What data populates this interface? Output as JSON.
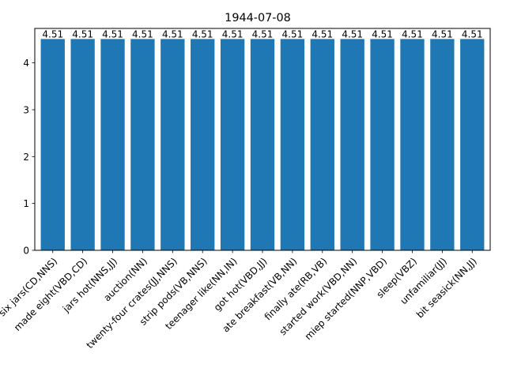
{
  "chart_data": {
    "type": "bar",
    "title": "1944-07-08",
    "xlabel": "",
    "ylabel": "",
    "categories": [
      "six jars(CD,NNS)",
      "made eight(VBD,CD)",
      "jars hot(NNS,JJ)",
      "auction(NN)",
      "twenty-four crates(JJ,NNS)",
      "strip pods(VB,NNS)",
      "teenager like(NN,IN)",
      "got hot(VBD,JJ)",
      "ate breakfast(VB,NN)",
      "finally ate(RB,VB)",
      "started work(VBD,NN)",
      "miep started(NNP,VBD)",
      "sleep(VBZ)",
      "unfamiliar(JJ)",
      "bit seasick(NN,JJ)"
    ],
    "values": [
      4.51,
      4.51,
      4.51,
      4.51,
      4.51,
      4.51,
      4.51,
      4.51,
      4.51,
      4.51,
      4.51,
      4.51,
      4.51,
      4.51,
      4.51
    ],
    "data_labels": [
      "4.51",
      "4.51",
      "4.51",
      "4.51",
      "4.51",
      "4.51",
      "4.51",
      "4.51",
      "4.51",
      "4.51",
      "4.51",
      "4.51",
      "4.51",
      "4.51",
      "4.51"
    ],
    "ylim": [
      0,
      4.7355
    ],
    "yticks": [
      0,
      1,
      2,
      3,
      4
    ],
    "ytick_labels": [
      "0",
      "1",
      "2",
      "3",
      "4"
    ],
    "bar_color": "#1f77b4",
    "grid": false,
    "legend": "none"
  }
}
